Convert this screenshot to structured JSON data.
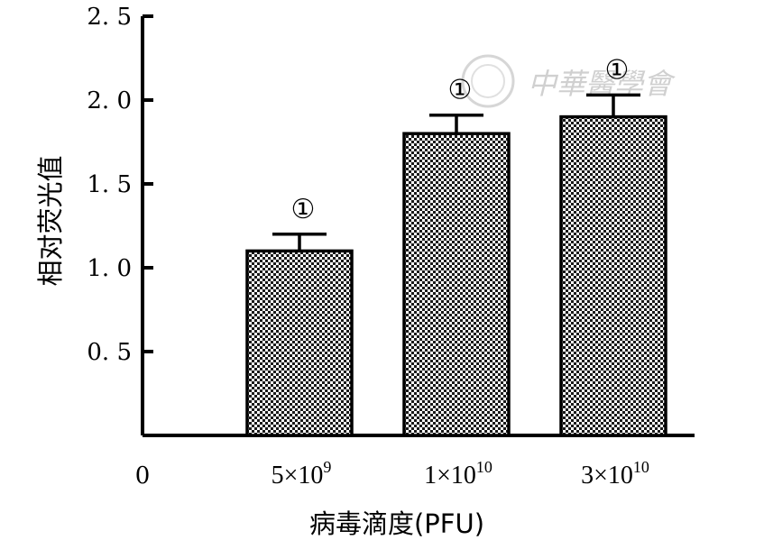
{
  "chart_data": {
    "type": "bar",
    "title": "",
    "xlabel": "病毒滴度(PFU)",
    "ylabel": "相对荧光值",
    "ylim": [
      0,
      2.5
    ],
    "yticks": [
      0.5,
      1.0,
      1.5,
      2.0,
      2.5
    ],
    "ytick_labels": [
      "0. 5",
      "1. 0",
      "1. 5",
      "2. 0",
      "2. 5"
    ],
    "origin_label": "0",
    "categories": [
      {
        "base": "5×10",
        "exp": "9"
      },
      {
        "base": "1×10",
        "exp": "10"
      },
      {
        "base": "3×10",
        "exp": "10"
      }
    ],
    "values": [
      1.1,
      1.8,
      1.9
    ],
    "errors": [
      0.1,
      0.11,
      0.13
    ],
    "significance": [
      "①",
      "①",
      "①"
    ],
    "bar_fill": "checkered",
    "grid": false,
    "legend": "none"
  },
  "watermark": {
    "text": "中華醫學會",
    "color": "#d0d0d0"
  }
}
